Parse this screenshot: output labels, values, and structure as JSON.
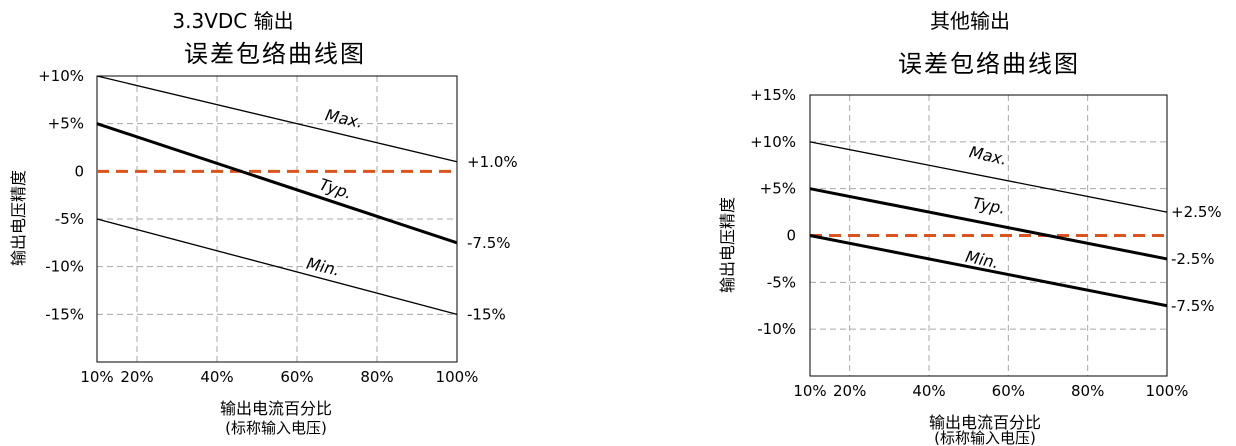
{
  "chart_data": [
    {
      "type": "line",
      "title": "3.3VDC 输出",
      "subtitle": "误差包络曲线图",
      "ylabel": "输出电压精度",
      "xlabel": "输出电流百分比",
      "xlabel_note": "(标称输入电压)",
      "xlim": [
        10,
        100
      ],
      "ylim": [
        -20,
        10
      ],
      "x_ticks": [
        "10%",
        "20%",
        "40%",
        "60%",
        "80%",
        "100%"
      ],
      "x_tick_values": [
        10,
        20,
        40,
        60,
        80,
        100
      ],
      "y_ticks": [
        "+10%",
        "+5%",
        "0",
        "-5%",
        "-10%",
        "-15%"
      ],
      "y_tick_values": [
        10,
        5,
        0,
        -5,
        -10,
        -15
      ],
      "grid": true,
      "series": [
        {
          "name": "Max.",
          "x": [
            10,
            100
          ],
          "y": [
            10,
            1
          ],
          "weight": "thin"
        },
        {
          "name": "Typ.",
          "x": [
            10,
            100
          ],
          "y": [
            5,
            -7.5
          ],
          "weight": "thick"
        },
        {
          "name": "Min.",
          "x": [
            10,
            100
          ],
          "y": [
            -5,
            -15
          ],
          "weight": "thin"
        }
      ],
      "reference_line": {
        "y": 0,
        "color": "#d9541e",
        "style": "dashed"
      },
      "end_labels": [
        "+1.0%",
        "-7.5%",
        "-15%"
      ]
    },
    {
      "type": "line",
      "title": "其他输出",
      "subtitle": "误差包络曲线图",
      "ylabel": "输出电压精度",
      "xlabel": "输出电流百分比",
      "xlabel_note": "(标称输入电压)",
      "xlim": [
        10,
        100
      ],
      "ylim": [
        -15,
        15
      ],
      "x_ticks": [
        "10%",
        "20%",
        "40%",
        "60%",
        "80%",
        "100%"
      ],
      "x_tick_values": [
        10,
        20,
        40,
        60,
        80,
        100
      ],
      "y_ticks": [
        "+15%",
        "+10%",
        "+5%",
        "0",
        "-5%",
        "-10%"
      ],
      "y_tick_values": [
        15,
        10,
        5,
        0,
        -5,
        -10
      ],
      "grid": true,
      "series": [
        {
          "name": "Max.",
          "x": [
            10,
            100
          ],
          "y": [
            10,
            2.5
          ],
          "weight": "thin"
        },
        {
          "name": "Typ.",
          "x": [
            10,
            100
          ],
          "y": [
            5,
            -2.5
          ],
          "weight": "thick"
        },
        {
          "name": "Min.",
          "x": [
            10,
            100
          ],
          "y": [
            0,
            -7.5
          ],
          "weight": "thick"
        }
      ],
      "reference_line": {
        "y": 0,
        "color": "#d9541e",
        "style": "dashed"
      },
      "end_labels": [
        "+2.5%",
        "-2.5%",
        "-7.5%"
      ]
    }
  ],
  "colors": {
    "reference": "#d9541e",
    "grid": "#a8a8a8",
    "frame": "#000000"
  }
}
